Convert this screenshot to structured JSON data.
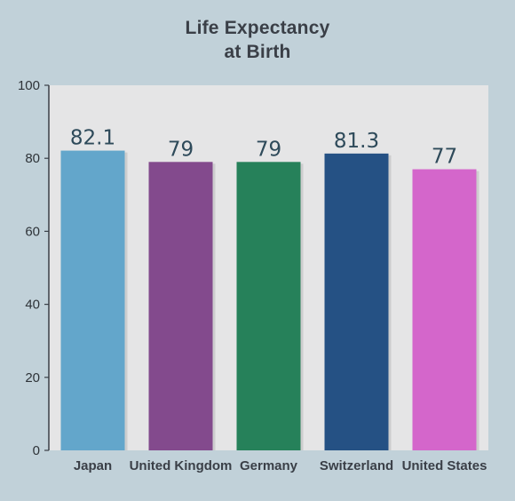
{
  "chart_data": {
    "type": "bar",
    "title_lines": [
      "Life Expectancy",
      "at Birth"
    ],
    "categories": [
      "Japan",
      "United Kingdom",
      "Germany",
      "Switzerland",
      "United States"
    ],
    "values": [
      82.1,
      79,
      79,
      81.3,
      77
    ],
    "value_labels": [
      "82.1",
      "79",
      "79",
      "81.3",
      "77"
    ],
    "colors": [
      "#63a6cb",
      "#834a8d",
      "#26815a",
      "#255184",
      "#d466cb"
    ],
    "xlabel": "",
    "ylabel": "",
    "ylim": [
      0,
      100
    ],
    "yticks": [
      0,
      20,
      40,
      60,
      80,
      100
    ],
    "grid": false,
    "plot_background": "#e5e5e6",
    "page_background": "#c1d1d9"
  }
}
